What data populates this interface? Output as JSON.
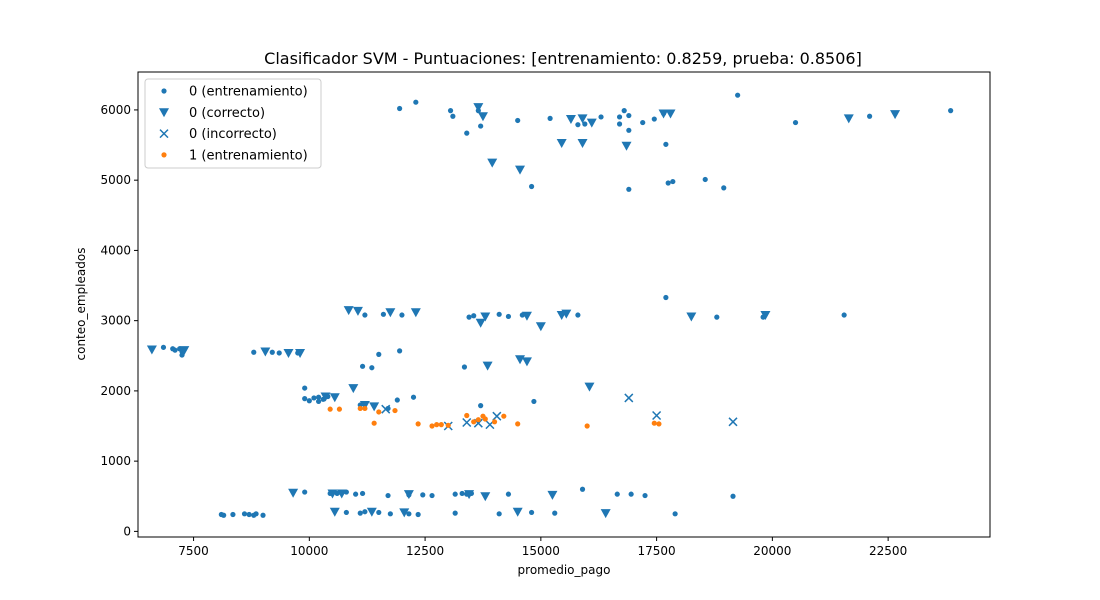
{
  "chart_data": {
    "type": "scatter",
    "title": "Clasificador SVM - Puntuaciones: [entrenamiento: 0.8259, prueba: 0.8506]",
    "xlabel": "promedio_pago",
    "ylabel": "conteo_empleados",
    "xlim": [
      6300,
      24700
    ],
    "ylim": [
      -80,
      6540
    ],
    "xticks": [
      7500,
      10000,
      12500,
      15000,
      17500,
      20000,
      22500
    ],
    "yticks": [
      0,
      1000,
      2000,
      3000,
      4000,
      5000,
      6000
    ],
    "grid": false,
    "legend_position": "top-left",
    "colors": {
      "class0": "#1f77b4",
      "class1": "#ff7f0e"
    },
    "series": [
      {
        "name": "0 (entrenamiento)",
        "marker": "point",
        "color": "#1f77b4",
        "points": [
          [
            11950,
            6020
          ],
          [
            12300,
            6110
          ],
          [
            13050,
            5990
          ],
          [
            13100,
            5910
          ],
          [
            13650,
            5990
          ],
          [
            13400,
            5670
          ],
          [
            13700,
            5770
          ],
          [
            14500,
            5850
          ],
          [
            15200,
            5880
          ],
          [
            15800,
            5790
          ],
          [
            15950,
            5800
          ],
          [
            16300,
            5900
          ],
          [
            16700,
            5900
          ],
          [
            16800,
            5990
          ],
          [
            16900,
            5920
          ],
          [
            16700,
            5800
          ],
          [
            16900,
            5710
          ],
          [
            17200,
            5820
          ],
          [
            17450,
            5870
          ],
          [
            17650,
            5950
          ],
          [
            17700,
            5510
          ],
          [
            19250,
            6210
          ],
          [
            20500,
            5820
          ],
          [
            22100,
            5910
          ],
          [
            23850,
            5990
          ],
          [
            14800,
            4910
          ],
          [
            16900,
            4870
          ],
          [
            17750,
            4960
          ],
          [
            17850,
            4980
          ],
          [
            18550,
            5010
          ],
          [
            18950,
            4890
          ],
          [
            17700,
            3330
          ],
          [
            11200,
            3080
          ],
          [
            11600,
            3090
          ],
          [
            12000,
            3080
          ],
          [
            13450,
            3050
          ],
          [
            13550,
            3070
          ],
          [
            14100,
            3090
          ],
          [
            14300,
            3060
          ],
          [
            14600,
            3080
          ],
          [
            15800,
            3080
          ],
          [
            18800,
            3050
          ],
          [
            21550,
            3080
          ],
          [
            19800,
            3050
          ],
          [
            6850,
            2620
          ],
          [
            7050,
            2600
          ],
          [
            7100,
            2580
          ],
          [
            7200,
            2600
          ],
          [
            7250,
            2560
          ],
          [
            7250,
            2510
          ],
          [
            8800,
            2550
          ],
          [
            9200,
            2550
          ],
          [
            9350,
            2540
          ],
          [
            9750,
            2540
          ],
          [
            11150,
            2350
          ],
          [
            11500,
            2520
          ],
          [
            11950,
            2570
          ],
          [
            11350,
            2330
          ],
          [
            13350,
            2340
          ],
          [
            9900,
            2040
          ],
          [
            9900,
            1890
          ],
          [
            10000,
            1860
          ],
          [
            10100,
            1900
          ],
          [
            10200,
            1910
          ],
          [
            10200,
            1850
          ],
          [
            10300,
            1880
          ],
          [
            10400,
            1920
          ],
          [
            11100,
            1800
          ],
          [
            11700,
            1750
          ],
          [
            11900,
            1870
          ],
          [
            12250,
            1910
          ],
          [
            13700,
            1790
          ],
          [
            14850,
            1850
          ],
          [
            9900,
            560
          ],
          [
            10450,
            540
          ],
          [
            10600,
            540
          ],
          [
            10800,
            560
          ],
          [
            11000,
            530
          ],
          [
            11150,
            540
          ],
          [
            11700,
            510
          ],
          [
            12150,
            520
          ],
          [
            12450,
            520
          ],
          [
            12650,
            510
          ],
          [
            13150,
            530
          ],
          [
            13300,
            540
          ],
          [
            13400,
            530
          ],
          [
            13500,
            540
          ],
          [
            14300,
            530
          ],
          [
            15900,
            600
          ],
          [
            16650,
            530
          ],
          [
            16950,
            530
          ],
          [
            17250,
            510
          ],
          [
            19150,
            500
          ],
          [
            8100,
            240
          ],
          [
            8150,
            230
          ],
          [
            8350,
            240
          ],
          [
            8600,
            250
          ],
          [
            8700,
            240
          ],
          [
            8800,
            230
          ],
          [
            8850,
            250
          ],
          [
            9000,
            230
          ],
          [
            10800,
            270
          ],
          [
            11100,
            260
          ],
          [
            11200,
            280
          ],
          [
            11350,
            290
          ],
          [
            11500,
            270
          ],
          [
            11750,
            250
          ],
          [
            12150,
            250
          ],
          [
            12350,
            240
          ],
          [
            13150,
            260
          ],
          [
            14100,
            250
          ],
          [
            14800,
            270
          ],
          [
            15300,
            260
          ],
          [
            17900,
            250
          ]
        ]
      },
      {
        "name": "0 (correcto)",
        "marker": "triangle-down",
        "color": "#1f77b4",
        "points": [
          [
            13650,
            6040
          ],
          [
            13750,
            5910
          ],
          [
            15650,
            5870
          ],
          [
            15900,
            5880
          ],
          [
            16100,
            5820
          ],
          [
            17650,
            5950
          ],
          [
            17800,
            5950
          ],
          [
            21650,
            5880
          ],
          [
            22650,
            5940
          ],
          [
            15450,
            5530
          ],
          [
            15900,
            5530
          ],
          [
            16850,
            5490
          ],
          [
            13950,
            5250
          ],
          [
            14550,
            5150
          ],
          [
            10850,
            3150
          ],
          [
            11050,
            3140
          ],
          [
            11750,
            3120
          ],
          [
            12300,
            3120
          ],
          [
            13700,
            2970
          ],
          [
            13800,
            3060
          ],
          [
            14700,
            3070
          ],
          [
            15000,
            2920
          ],
          [
            15450,
            3080
          ],
          [
            15550,
            3100
          ],
          [
            18250,
            3060
          ],
          [
            19850,
            3080
          ],
          [
            6600,
            2590
          ],
          [
            7300,
            2580
          ],
          [
            9050,
            2560
          ],
          [
            9550,
            2540
          ],
          [
            9800,
            2540
          ],
          [
            13850,
            2360
          ],
          [
            14550,
            2450
          ],
          [
            14700,
            2420
          ],
          [
            16050,
            2060
          ],
          [
            10950,
            2040
          ],
          [
            10350,
            1920
          ],
          [
            10550,
            1910
          ],
          [
            11200,
            1800
          ],
          [
            11400,
            1780
          ],
          [
            9650,
            550
          ],
          [
            10500,
            540
          ],
          [
            10700,
            540
          ],
          [
            12150,
            530
          ],
          [
            13450,
            530
          ],
          [
            13800,
            500
          ],
          [
            15250,
            520
          ],
          [
            10550,
            280
          ],
          [
            11350,
            280
          ],
          [
            12050,
            270
          ],
          [
            14500,
            280
          ],
          [
            16400,
            260
          ]
        ]
      },
      {
        "name": "0 (incorrecto)",
        "marker": "x",
        "color": "#1f77b4",
        "points": [
          [
            11650,
            1740
          ],
          [
            13000,
            1500
          ],
          [
            13400,
            1550
          ],
          [
            13650,
            1540
          ],
          [
            13900,
            1520
          ],
          [
            14050,
            1640
          ],
          [
            16900,
            1900
          ],
          [
            17500,
            1650
          ],
          [
            19150,
            1560
          ]
        ]
      },
      {
        "name": "1 (entrenamiento)",
        "marker": "point",
        "color": "#ff7f0e",
        "points": [
          [
            10450,
            1740
          ],
          [
            10650,
            1740
          ],
          [
            11100,
            1750
          ],
          [
            11200,
            1750
          ],
          [
            11400,
            1540
          ],
          [
            11500,
            1700
          ],
          [
            11850,
            1720
          ],
          [
            12350,
            1530
          ],
          [
            12650,
            1500
          ],
          [
            12750,
            1520
          ],
          [
            12850,
            1520
          ],
          [
            13000,
            1510
          ],
          [
            13400,
            1650
          ],
          [
            13550,
            1560
          ],
          [
            13650,
            1590
          ],
          [
            13750,
            1640
          ],
          [
            13800,
            1600
          ],
          [
            14000,
            1560
          ],
          [
            14200,
            1640
          ],
          [
            14500,
            1530
          ],
          [
            16000,
            1500
          ],
          [
            17450,
            1540
          ],
          [
            17550,
            1530
          ]
        ]
      }
    ]
  }
}
